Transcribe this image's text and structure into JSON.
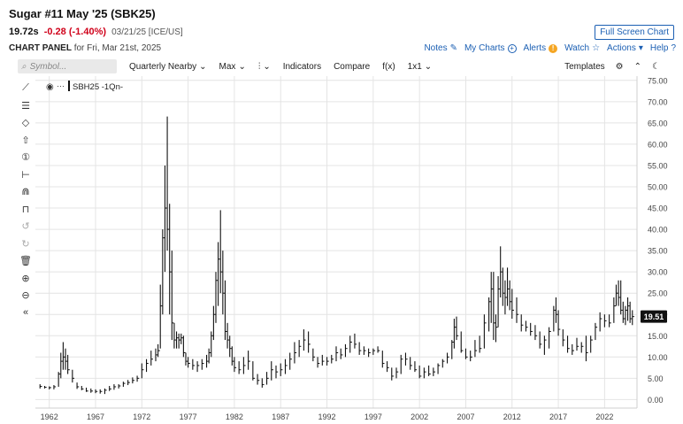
{
  "header": {
    "title": "Sugar #11 May '25 (SBK25)",
    "last": "19.72s",
    "change": "-0.28 (-1.40%)",
    "meta": "03/21/25 [ICE/US]",
    "fullscreen_label": "Full Screen Chart",
    "panel_label": "CHART PANEL",
    "panel_date": "for Fri, Mar 21st, 2025"
  },
  "topnav": {
    "notes": "Notes",
    "mycharts": "My Charts",
    "alerts": "Alerts",
    "watch": "Watch",
    "actions": "Actions",
    "help": "Help"
  },
  "toolbar": {
    "search_placeholder": "Symbol...",
    "period": "Quarterly Nearby",
    "range": "Max",
    "indicators": "Indicators",
    "compare": "Compare",
    "fx": "f(x)",
    "layout": "1x1",
    "templates": "Templates"
  },
  "legend": {
    "symbol": "SBH25 -1Qn-"
  },
  "colors": {
    "bar": "#111111",
    "grid": "#e4e4e4",
    "price_badge": "#111111",
    "link": "#1b5fb3",
    "change_down": "#d0021b"
  },
  "chart_data": {
    "type": "bar",
    "subtype": "ohlc",
    "series_name": "SBH25 -1Qn-",
    "x_tick_labels": [
      "1962",
      "1967",
      "1972",
      "1977",
      "1982",
      "1987",
      "1992",
      "1997",
      "2002",
      "2007",
      "2012",
      "2017",
      "2022"
    ],
    "x_range": [
      1960.5,
      2025.5
    ],
    "y_tick_labels": [
      "0.00",
      "5.00",
      "10.00",
      "15.00",
      "20.00",
      "25.00",
      "30.00",
      "35.00",
      "40.00",
      "45.00",
      "50.00",
      "55.00",
      "60.00",
      "65.00",
      "70.00",
      "75.00"
    ],
    "ylim": [
      -2,
      76
    ],
    "last_price_label": "19.51",
    "last_price": 19.51,
    "grid": true,
    "points": [
      [
        1961.0,
        2.6,
        3.6,
        3.1
      ],
      [
        1961.5,
        2.6,
        3.2,
        2.9
      ],
      [
        1962.0,
        2.4,
        3.1,
        2.8
      ],
      [
        1962.5,
        2.4,
        3.4,
        3.0
      ],
      [
        1963.0,
        3.0,
        6.5,
        6.0
      ],
      [
        1963.25,
        5.0,
        11.0,
        9.0
      ],
      [
        1963.5,
        7.0,
        13.5,
        10.0
      ],
      [
        1963.75,
        7.0,
        12.0,
        9.0
      ],
      [
        1964.0,
        6.0,
        10.5,
        7.0
      ],
      [
        1964.5,
        4.0,
        7.0,
        5.0
      ],
      [
        1965.0,
        2.5,
        4.0,
        3.0
      ],
      [
        1965.5,
        2.2,
        3.2,
        2.5
      ],
      [
        1966.0,
        1.8,
        2.8,
        2.0
      ],
      [
        1966.5,
        1.6,
        2.6,
        2.0
      ],
      [
        1967.0,
        1.5,
        2.4,
        1.9
      ],
      [
        1967.5,
        1.4,
        2.4,
        1.9
      ],
      [
        1968.0,
        1.3,
        2.6,
        2.2
      ],
      [
        1968.5,
        2.0,
        3.2,
        2.5
      ],
      [
        1969.0,
        2.3,
        3.6,
        3.0
      ],
      [
        1969.5,
        2.6,
        3.6,
        3.2
      ],
      [
        1970.0,
        3.0,
        4.2,
        3.8
      ],
      [
        1970.5,
        3.4,
        4.6,
        4.0
      ],
      [
        1971.0,
        3.8,
        5.2,
        4.5
      ],
      [
        1971.5,
        4.2,
        5.6,
        5.0
      ],
      [
        1972.0,
        5.0,
        8.5,
        7.0
      ],
      [
        1972.5,
        6.5,
        9.5,
        8.5
      ],
      [
        1973.0,
        8.0,
        11.5,
        9.5
      ],
      [
        1973.5,
        9.0,
        12.0,
        10.5
      ],
      [
        1973.75,
        10.0,
        13.0,
        11.5
      ],
      [
        1974.0,
        12.0,
        27.0,
        22.0
      ],
      [
        1974.25,
        20.0,
        40.0,
        38.0
      ],
      [
        1974.5,
        30.0,
        55.0,
        45.0
      ],
      [
        1974.75,
        35.0,
        66.5,
        40.0
      ],
      [
        1975.0,
        20.0,
        46.0,
        30.0
      ],
      [
        1975.25,
        14.0,
        35.0,
        18.0
      ],
      [
        1975.5,
        12.0,
        18.0,
        14.0
      ],
      [
        1975.75,
        12.0,
        16.0,
        14.5
      ],
      [
        1976.0,
        12.0,
        15.5,
        14.0
      ],
      [
        1976.25,
        13.0,
        15.5,
        14.5
      ],
      [
        1976.5,
        10.0,
        15.0,
        11.0
      ],
      [
        1976.75,
        8.0,
        11.0,
        9.0
      ],
      [
        1977.0,
        7.5,
        10.0,
        8.5
      ],
      [
        1977.5,
        7.0,
        9.5,
        8.0
      ],
      [
        1978.0,
        6.5,
        9.0,
        8.0
      ],
      [
        1978.5,
        7.0,
        9.5,
        8.5
      ],
      [
        1979.0,
        7.5,
        10.5,
        9.0
      ],
      [
        1979.25,
        8.5,
        12.0,
        11.0
      ],
      [
        1979.5,
        10.0,
        16.0,
        15.0
      ],
      [
        1979.75,
        14.0,
        22.0,
        20.0
      ],
      [
        1980.0,
        18.0,
        30.0,
        28.0
      ],
      [
        1980.25,
        22.0,
        37.0,
        33.0
      ],
      [
        1980.5,
        25.0,
        44.5,
        30.0
      ],
      [
        1980.75,
        20.0,
        35.0,
        25.0
      ],
      [
        1981.0,
        14.0,
        28.0,
        16.0
      ],
      [
        1981.25,
        12.0,
        18.0,
        14.0
      ],
      [
        1981.5,
        10.0,
        15.0,
        12.0
      ],
      [
        1981.75,
        8.0,
        12.5,
        9.0
      ],
      [
        1982.0,
        6.5,
        10.0,
        7.5
      ],
      [
        1982.5,
        6.0,
        9.0,
        7.0
      ],
      [
        1983.0,
        6.0,
        10.0,
        8.0
      ],
      [
        1983.5,
        7.0,
        11.5,
        9.0
      ],
      [
        1984.0,
        4.5,
        9.0,
        5.0
      ],
      [
        1984.5,
        3.5,
        6.0,
        4.5
      ],
      [
        1985.0,
        2.8,
        5.0,
        3.5
      ],
      [
        1985.5,
        3.5,
        6.5,
        5.0
      ],
      [
        1986.0,
        4.5,
        9.0,
        7.0
      ],
      [
        1986.5,
        5.0,
        8.0,
        6.5
      ],
      [
        1987.0,
        5.5,
        8.5,
        7.0
      ],
      [
        1987.5,
        6.0,
        9.5,
        8.0
      ],
      [
        1988.0,
        7.0,
        11.0,
        9.5
      ],
      [
        1988.5,
        8.5,
        13.5,
        11.0
      ],
      [
        1989.0,
        10.0,
        14.0,
        12.5
      ],
      [
        1989.5,
        11.5,
        16.5,
        14.0
      ],
      [
        1990.0,
        11.0,
        16.0,
        13.0
      ],
      [
        1990.5,
        9.0,
        12.0,
        10.0
      ],
      [
        1991.0,
        7.5,
        10.0,
        8.5
      ],
      [
        1991.5,
        8.0,
        10.5,
        9.0
      ],
      [
        1992.0,
        8.0,
        10.0,
        9.0
      ],
      [
        1992.5,
        8.5,
        10.5,
        9.5
      ],
      [
        1993.0,
        9.0,
        12.5,
        11.0
      ],
      [
        1993.5,
        9.5,
        12.0,
        10.5
      ],
      [
        1994.0,
        10.0,
        13.0,
        12.0
      ],
      [
        1994.5,
        11.0,
        15.0,
        13.5
      ],
      [
        1995.0,
        12.0,
        15.5,
        13.0
      ],
      [
        1995.5,
        10.5,
        13.5,
        11.5
      ],
      [
        1996.0,
        10.5,
        12.5,
        11.5
      ],
      [
        1996.5,
        10.0,
        12.0,
        11.0
      ],
      [
        1997.0,
        10.5,
        12.0,
        11.5
      ],
      [
        1997.5,
        11.0,
        12.5,
        11.5
      ],
      [
        1998.0,
        7.5,
        11.5,
        8.5
      ],
      [
        1998.5,
        6.5,
        9.0,
        7.5
      ],
      [
        1999.0,
        4.5,
        7.5,
        5.5
      ],
      [
        1999.5,
        5.0,
        7.5,
        6.5
      ],
      [
        2000.0,
        6.0,
        10.5,
        9.5
      ],
      [
        2000.5,
        8.0,
        11.0,
        9.5
      ],
      [
        2001.0,
        7.0,
        10.0,
        8.0
      ],
      [
        2001.5,
        6.5,
        9.0,
        7.0
      ],
      [
        2002.0,
        5.0,
        8.0,
        5.5
      ],
      [
        2002.5,
        5.0,
        7.5,
        6.5
      ],
      [
        2003.0,
        5.5,
        8.0,
        6.0
      ],
      [
        2003.5,
        5.5,
        7.5,
        6.5
      ],
      [
        2004.0,
        6.0,
        8.5,
        8.0
      ],
      [
        2004.5,
        7.5,
        9.5,
        9.0
      ],
      [
        2005.0,
        8.5,
        11.0,
        10.0
      ],
      [
        2005.5,
        9.5,
        14.0,
        13.5
      ],
      [
        2005.75,
        12.0,
        19.0,
        17.0
      ],
      [
        2006.0,
        14.0,
        19.5,
        15.0
      ],
      [
        2006.5,
        11.0,
        16.0,
        11.5
      ],
      [
        2007.0,
        9.5,
        12.0,
        10.0
      ],
      [
        2007.5,
        9.0,
        11.5,
        10.0
      ],
      [
        2008.0,
        10.0,
        14.0,
        11.5
      ],
      [
        2008.5,
        11.0,
        15.0,
        12.0
      ],
      [
        2009.0,
        12.0,
        20.0,
        18.0
      ],
      [
        2009.5,
        16.0,
        24.0,
        23.0
      ],
      [
        2009.75,
        18.0,
        30.0,
        26.0
      ],
      [
        2010.0,
        14.0,
        30.0,
        18.0
      ],
      [
        2010.25,
        13.5,
        20.0,
        17.0
      ],
      [
        2010.5,
        17.0,
        29.0,
        26.0
      ],
      [
        2010.75,
        24.0,
        36.0,
        30.0
      ],
      [
        2011.0,
        22.0,
        31.0,
        25.0
      ],
      [
        2011.25,
        20.0,
        28.0,
        24.0
      ],
      [
        2011.5,
        22.0,
        31.0,
        26.0
      ],
      [
        2011.75,
        21.0,
        28.0,
        23.0
      ],
      [
        2012.0,
        19.0,
        26.0,
        21.0
      ],
      [
        2012.5,
        18.0,
        24.0,
        20.0
      ],
      [
        2013.0,
        16.0,
        20.0,
        17.5
      ],
      [
        2013.5,
        16.0,
        18.5,
        17.0
      ],
      [
        2014.0,
        15.0,
        18.0,
        16.0
      ],
      [
        2014.5,
        14.0,
        17.5,
        15.0
      ],
      [
        2015.0,
        12.0,
        16.0,
        13.0
      ],
      [
        2015.5,
        10.5,
        15.0,
        14.0
      ],
      [
        2016.0,
        12.0,
        17.0,
        16.0
      ],
      [
        2016.5,
        16.0,
        22.0,
        21.0
      ],
      [
        2016.75,
        18.0,
        24.0,
        20.0
      ],
      [
        2017.0,
        15.0,
        21.0,
        16.5
      ],
      [
        2017.5,
        12.5,
        16.5,
        14.0
      ],
      [
        2018.0,
        11.0,
        15.0,
        12.0
      ],
      [
        2018.5,
        10.5,
        13.0,
        11.5
      ],
      [
        2019.0,
        11.5,
        14.5,
        12.5
      ],
      [
        2019.5,
        11.0,
        13.5,
        12.5
      ],
      [
        2020.0,
        9.0,
        15.0,
        11.0
      ],
      [
        2020.5,
        11.0,
        15.0,
        14.0
      ],
      [
        2021.0,
        14.0,
        18.0,
        17.0
      ],
      [
        2021.5,
        16.0,
        20.5,
        19.0
      ],
      [
        2022.0,
        17.0,
        20.0,
        18.5
      ],
      [
        2022.5,
        17.0,
        20.0,
        18.0
      ],
      [
        2023.0,
        18.0,
        24.0,
        22.0
      ],
      [
        2023.25,
        22.0,
        27.0,
        25.0
      ],
      [
        2023.5,
        22.0,
        28.0,
        24.0
      ],
      [
        2023.75,
        20.0,
        28.0,
        21.0
      ],
      [
        2024.0,
        18.0,
        23.0,
        19.0
      ],
      [
        2024.25,
        17.5,
        22.0,
        21.0
      ],
      [
        2024.5,
        18.5,
        24.0,
        22.0
      ],
      [
        2024.75,
        18.0,
        23.0,
        19.0
      ],
      [
        2025.0,
        17.5,
        21.0,
        19.5
      ]
    ]
  }
}
